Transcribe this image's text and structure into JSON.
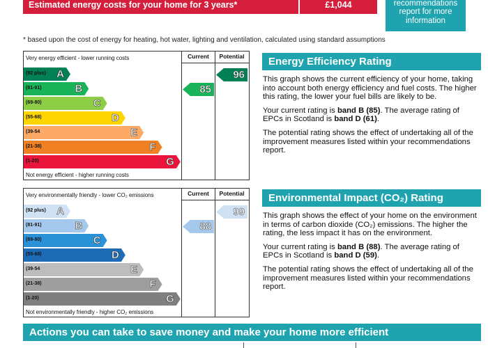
{
  "top_bar": {
    "label": "Estimated energy costs for your home for 3 years*",
    "value": "£1,044",
    "color": "#d51e3c"
  },
  "recommendations_box": {
    "text": "See your recommendations report for more information",
    "color": "#1fa3ae"
  },
  "footnote": "* based upon the cost of energy for heating, hot water, lighting and ventilation, calculated using standard assumptions",
  "charts": [
    {
      "top_note": "Very energy efficient - lower running costs",
      "bottom_note": "Not energy efficient - higher running costs",
      "column_headers": [
        "Current",
        "Potential"
      ],
      "bands": [
        {
          "range": "(92 plus)",
          "letter": "A",
          "color": "#008054"
        },
        {
          "range": "(81-91)",
          "letter": "B",
          "color": "#19b459"
        },
        {
          "range": "(69-80)",
          "letter": "C",
          "color": "#8dce46"
        },
        {
          "range": "(55-68)",
          "letter": "D",
          "color": "#ffd500"
        },
        {
          "range": "(39-54",
          "letter": "E",
          "color": "#fcaa65"
        },
        {
          "range": "(21-38)",
          "letter": "F",
          "color": "#ef8023"
        },
        {
          "range": "(1-20)",
          "letter": "G",
          "color": "#e9153b"
        }
      ],
      "current": {
        "value": 85,
        "color": "#19b459"
      },
      "potential": {
        "value": 96,
        "color": "#008054"
      }
    },
    {
      "top_note": "Very environmentally friendly - lower CO₂ emissions",
      "bottom_note": "Not environmentally friendly - higher CO₂ emissions",
      "column_headers": [
        "Current",
        "Potential"
      ],
      "bands": [
        {
          "range": "(92 plus)",
          "letter": "A",
          "color": "#cfe2f3"
        },
        {
          "range": "(81-91)",
          "letter": "B",
          "color": "#a5c9ec"
        },
        {
          "range": "(69-80)",
          "letter": "C",
          "color": "#2c92d8"
        },
        {
          "range": "(55-68)",
          "letter": "D",
          "color": "#1f6cb6"
        },
        {
          "range": "(39-54",
          "letter": "E",
          "color": "#bdbdbd"
        },
        {
          "range": "(21-38)",
          "letter": "F",
          "color": "#9e9e9e"
        },
        {
          "range": "(1-20)",
          "letter": "G",
          "color": "#7f7f7f"
        }
      ],
      "current": {
        "value": 88,
        "color": "#a5c9ec"
      },
      "potential": {
        "value": 99,
        "color": "#cfe2f3"
      }
    }
  ],
  "panels": [
    {
      "title": "Energy Efficiency Rating",
      "paragraphs": [
        [
          "This graph shows the current efficiency of your home, taking into account both energy efficiency and fuel costs. The higher this rating, the lower your fuel bills are likely to be."
        ],
        [
          "Your current rating is ",
          "band B (85)",
          ". The average rating of EPCs in Scotland is ",
          "band D (61)",
          "."
        ],
        [
          "The potential rating shows the effect of undertaking all of the improvement measures listed within your recommendations report."
        ]
      ]
    },
    {
      "title": "Environmental Impact (CO₂) Rating",
      "paragraphs": [
        [
          "This graph shows the effect of your home on the environment in terms of carbon dioxide (CO₂) emissions. The higher the rating, the less impact it has on the environment."
        ],
        [
          "Your current rating is ",
          "band B (88)",
          ". The average rating of EPCs in Scotland is ",
          "band D (59)",
          "."
        ],
        [
          "The potential rating shows the effect of undertaking all of the improvement measures listed within your recommendations report."
        ]
      ]
    }
  ],
  "actions_bar": {
    "text": "Actions you can take to save money and make your home more efficient",
    "color": "#1fa3ae"
  }
}
